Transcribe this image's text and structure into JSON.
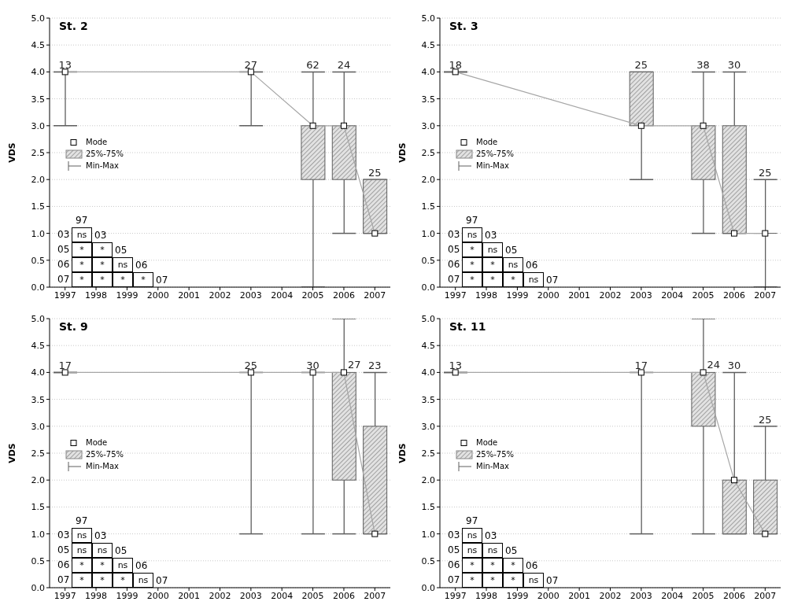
{
  "chart_data": [
    {
      "type": "box",
      "title": "St. 2",
      "ylabel": "VDS",
      "categories": [
        "1997",
        "1998",
        "1999",
        "2000",
        "2001",
        "2002",
        "2003",
        "2004",
        "2005",
        "2006",
        "2007"
      ],
      "ylim": [
        0,
        5
      ],
      "yticks": [
        {
          "value": 0,
          "label": "0.0"
        },
        {
          "value": 0.5,
          "label": "0.5"
        },
        {
          "value": 1,
          "label": "1.0"
        },
        {
          "value": 1.5,
          "label": "1.5"
        },
        {
          "value": 2,
          "label": "2.0"
        },
        {
          "value": 2.5,
          "label": "2.5"
        },
        {
          "value": 3,
          "label": "3.0"
        },
        {
          "value": 3.5,
          "label": "3.5"
        },
        {
          "value": 4,
          "label": "4.0"
        },
        {
          "value": 4.5,
          "label": "4.5"
        },
        {
          "value": 5,
          "label": "5.0"
        }
      ],
      "grid": "y",
      "legend": "left",
      "series": [
        {
          "name": "Mode",
          "type": "line",
          "color": "#a6a6a6",
          "marker": "square",
          "values": [
            4,
            null,
            null,
            null,
            null,
            null,
            4,
            null,
            3,
            3,
            1
          ]
        },
        {
          "name": "25%-75%",
          "type": "box",
          "color": "#5e5e5e",
          "boxes": [
            {
              "low": 3,
              "q1": 4,
              "q3": 4,
              "high": 4
            },
            null,
            null,
            null,
            null,
            null,
            {
              "low": 3,
              "q1": 4,
              "q3": 4,
              "high": 4
            },
            null,
            {
              "low": 0,
              "q1": 2,
              "q3": 3,
              "high": 4
            },
            {
              "low": 1,
              "q1": 2,
              "q3": 3,
              "high": 4
            },
            {
              "low": 1,
              "q1": 1,
              "q3": 2,
              "high": 2
            }
          ]
        }
      ],
      "annotations": [
        {
          "text": "13",
          "x": "1997",
          "y": 4
        },
        {
          "text": "27",
          "x": "2003",
          "y": 4
        },
        {
          "text": "62",
          "x": "2005",
          "y": 4
        },
        {
          "text": "24",
          "x": "2006",
          "y": 4
        },
        {
          "text": "25",
          "x": "2007",
          "y": 2
        },
        "Min-Max",
        "97",
        "03",
        "05",
        "06",
        "07",
        "03",
        "05",
        "06",
        "07",
        "ns",
        "*",
        "*",
        "*",
        "*",
        "ns",
        "*",
        "*",
        "*",
        "*"
      ]
    },
    {
      "type": "box",
      "title": "St. 3",
      "ylabel": "VDS",
      "categories": [
        "1997",
        "1998",
        "1999",
        "2000",
        "2001",
        "2002",
        "2003",
        "2004",
        "2005",
        "2006",
        "2007"
      ],
      "ylim": [
        0,
        5
      ],
      "yticks": [
        {
          "value": 0,
          "label": "0.0"
        },
        {
          "value": 0.5,
          "label": "0.5"
        },
        {
          "value": 1,
          "label": "1.0"
        },
        {
          "value": 1.5,
          "label": "1.5"
        },
        {
          "value": 2,
          "label": "2.0"
        },
        {
          "value": 2.5,
          "label": "2.5"
        },
        {
          "value": 3,
          "label": "3.0"
        },
        {
          "value": 3.5,
          "label": "3.5"
        },
        {
          "value": 4,
          "label": "4.0"
        },
        {
          "value": 4.5,
          "label": "4.5"
        },
        {
          "value": 5,
          "label": "5.0"
        }
      ],
      "grid": "y",
      "legend": "left",
      "series": [
        {
          "name": "Mode",
          "type": "line",
          "color": "#a6a6a6",
          "marker": "square",
          "values": [
            4,
            null,
            null,
            null,
            null,
            null,
            3,
            null,
            3,
            1,
            1
          ]
        },
        {
          "name": "25%-75%",
          "type": "box",
          "color": "#5e5e5e",
          "boxes": [
            {
              "low": 4,
              "q1": 4,
              "q3": 4,
              "high": 4
            },
            null,
            null,
            null,
            null,
            null,
            {
              "low": 2,
              "q1": 3,
              "q3": 4,
              "high": 4
            },
            null,
            {
              "low": 1,
              "q1": 2,
              "q3": 3,
              "high": 4
            },
            {
              "low": 1,
              "q1": 1,
              "q3": 3,
              "high": 4
            },
            {
              "low": 0,
              "q1": 1,
              "q3": 1,
              "high": 2
            }
          ]
        }
      ],
      "annotations": [
        {
          "text": "18",
          "x": "1997",
          "y": 4
        },
        {
          "text": "25",
          "x": "2003",
          "y": 4
        },
        {
          "text": "38",
          "x": "2005",
          "y": 4
        },
        {
          "text": "30",
          "x": "2006",
          "y": 4
        },
        {
          "text": "25",
          "x": "2007",
          "y": 2
        },
        "Min-Max",
        "97",
        "03",
        "05",
        "06",
        "07",
        "03",
        "05",
        "06",
        "07",
        "ns",
        "*",
        "ns",
        "*",
        "*",
        "ns",
        "*",
        "*",
        "*",
        "ns"
      ]
    },
    {
      "type": "box",
      "title": "St. 9",
      "ylabel": "VDS",
      "categories": [
        "1997",
        "1998",
        "1999",
        "2000",
        "2001",
        "2002",
        "2003",
        "2004",
        "2005",
        "2006",
        "2007"
      ],
      "ylim": [
        0,
        5
      ],
      "yticks": [
        {
          "value": 0,
          "label": "0.0"
        },
        {
          "value": 0.5,
          "label": "0.5"
        },
        {
          "value": 1,
          "label": "1.0"
        },
        {
          "value": 1.5,
          "label": "1.5"
        },
        {
          "value": 2,
          "label": "2.0"
        },
        {
          "value": 2.5,
          "label": "2.5"
        },
        {
          "value": 3,
          "label": "3.0"
        },
        {
          "value": 3.5,
          "label": "3.5"
        },
        {
          "value": 4,
          "label": "4.0"
        },
        {
          "value": 4.5,
          "label": "4.5"
        },
        {
          "value": 5,
          "label": "5.0"
        }
      ],
      "grid": "y",
      "legend": "left",
      "series": [
        {
          "name": "Mode",
          "type": "line",
          "color": "#a6a6a6",
          "marker": "square",
          "values": [
            4,
            null,
            null,
            null,
            null,
            null,
            4,
            null,
            4,
            4,
            1
          ]
        },
        {
          "name": "25%-75%",
          "type": "box",
          "color": "#5e5e5e",
          "boxes": [
            {
              "low": 4,
              "q1": 4,
              "q3": 4,
              "high": 4
            },
            null,
            null,
            null,
            null,
            null,
            {
              "low": 1,
              "q1": 4,
              "q3": 4,
              "high": 4
            },
            null,
            {
              "low": 1,
              "q1": 4,
              "q3": 4,
              "high": 4
            },
            {
              "low": 1,
              "q1": 2,
              "q3": 4,
              "high": 5
            },
            {
              "low": 1,
              "q1": 1,
              "q3": 3,
              "high": 4
            }
          ]
        }
      ],
      "annotations": [
        {
          "text": "17",
          "x": "1997",
          "y": 4
        },
        {
          "text": "25",
          "x": "2003",
          "y": 4
        },
        {
          "text": "30",
          "x": "2005",
          "y": 4
        },
        {
          "text": "27",
          "x": "2006",
          "y": 4
        },
        {
          "text": "23",
          "x": "2007",
          "y": 4
        },
        "Min-Max",
        "97",
        "03",
        "05",
        "06",
        "07",
        "03",
        "05",
        "06",
        "07",
        "ns",
        "ns",
        "ns",
        "*",
        "*",
        "ns",
        "*",
        "*",
        "*",
        "ns"
      ]
    },
    {
      "type": "box",
      "title": "St. 11",
      "ylabel": "VDS",
      "categories": [
        "1997",
        "1998",
        "1999",
        "2000",
        "2001",
        "2002",
        "2003",
        "2004",
        "2005",
        "2006",
        "2007"
      ],
      "ylim": [
        0,
        5
      ],
      "yticks": [
        {
          "value": 0,
          "label": "0.0"
        },
        {
          "value": 0.5,
          "label": "0.5"
        },
        {
          "value": 1,
          "label": "1.0"
        },
        {
          "value": 1.5,
          "label": "1.5"
        },
        {
          "value": 2,
          "label": "2.0"
        },
        {
          "value": 2.5,
          "label": "2.5"
        },
        {
          "value": 3,
          "label": "3.0"
        },
        {
          "value": 3.5,
          "label": "3.5"
        },
        {
          "value": 4,
          "label": "4.0"
        },
        {
          "value": 4.5,
          "label": "4.5"
        },
        {
          "value": 5,
          "label": "5.0"
        }
      ],
      "grid": "y",
      "legend": "left",
      "series": [
        {
          "name": "Mode",
          "type": "line",
          "color": "#a6a6a6",
          "marker": "square",
          "values": [
            4,
            null,
            null,
            null,
            null,
            null,
            4,
            null,
            4,
            2,
            1
          ]
        },
        {
          "name": "25%-75%",
          "type": "box",
          "color": "#5e5e5e",
          "boxes": [
            {
              "low": 4,
              "q1": 4,
              "q3": 4,
              "high": 4
            },
            null,
            null,
            null,
            null,
            null,
            {
              "low": 1,
              "q1": 4,
              "q3": 4,
              "high": 4
            },
            null,
            {
              "low": 1,
              "q1": 3,
              "q3": 4,
              "high": 5
            },
            {
              "low": 1,
              "q1": 1,
              "q3": 2,
              "high": 4
            },
            {
              "low": 1,
              "q1": 1,
              "q3": 2,
              "high": 3
            }
          ]
        }
      ],
      "annotations": [
        {
          "text": "13",
          "x": "1997",
          "y": 4
        },
        {
          "text": "17",
          "x": "2003",
          "y": 4
        },
        {
          "text": "24",
          "x": "2005",
          "y": 4
        },
        {
          "text": "30",
          "x": "2006",
          "y": 4
        },
        {
          "text": "25",
          "x": "2007",
          "y": 3
        },
        "Min-Max",
        "97",
        "03",
        "05",
        "06",
        "07",
        "03",
        "05",
        "06",
        "07",
        "ns",
        "ns",
        "ns",
        "*",
        "*",
        "*",
        "*",
        "*",
        "*",
        "ns"
      ]
    }
  ]
}
